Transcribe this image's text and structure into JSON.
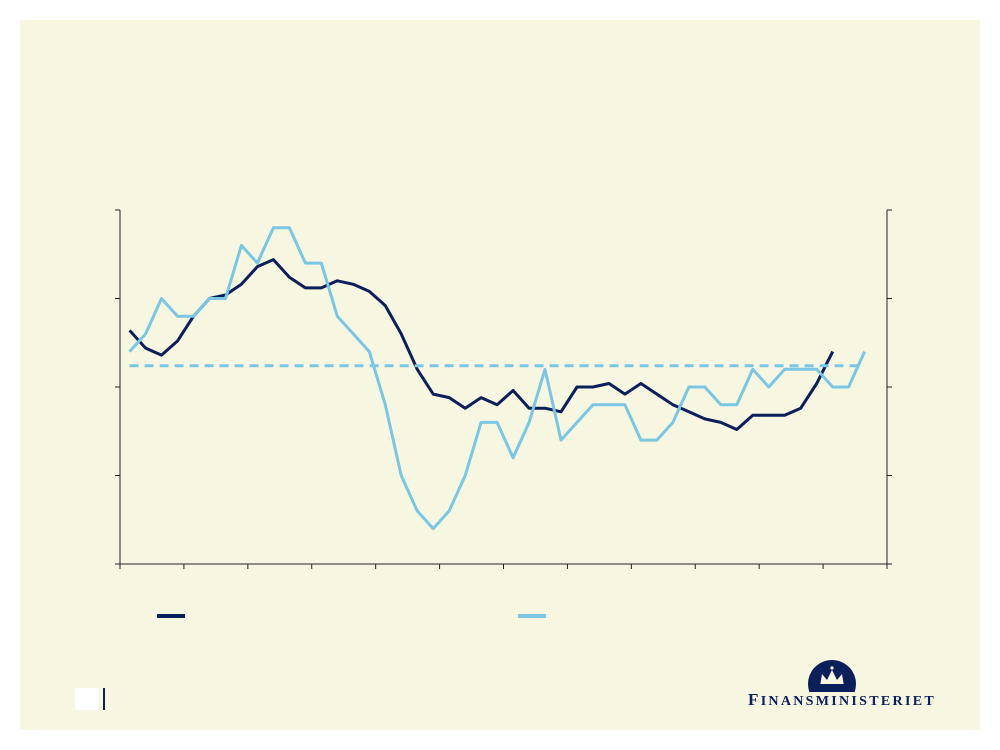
{
  "colors": {
    "background_panel": "#f7f6e1",
    "series_dark": "#0b1f5b",
    "series_light": "#7ac6e3",
    "axis": "#222222"
  },
  "chart_data": {
    "type": "line",
    "title": "",
    "xlabel": "",
    "ylabel": "",
    "grid": false,
    "legend": "bottom",
    "x_categories": 12,
    "y_left_ticks": 5,
    "y_right_ticks": 5,
    "ylim": [
      0,
      100
    ],
    "series": [
      {
        "axis": "left",
        "color": "#0b1f5b",
        "x": [
          0.15,
          0.4,
          0.65,
          0.9,
          1.15,
          1.4,
          1.65,
          1.9,
          2.15,
          2.4,
          2.65,
          2.9,
          3.15,
          3.4,
          3.65,
          3.9,
          4.15,
          4.4,
          4.65,
          4.9,
          5.15,
          5.4,
          5.65,
          5.9,
          6.15,
          6.4,
          6.65,
          6.9,
          7.15,
          7.4,
          7.65,
          7.9,
          8.15,
          8.4,
          8.65,
          8.9,
          9.15,
          9.4,
          9.65,
          9.9,
          10.15,
          10.4,
          10.65,
          10.9,
          11.15
        ],
        "y": [
          66,
          61,
          59,
          63,
          70,
          75,
          76,
          79,
          84,
          86,
          81,
          78,
          78,
          80,
          79,
          77,
          73,
          65,
          55,
          48,
          47,
          44,
          47,
          45,
          49,
          44,
          44,
          43,
          50,
          50,
          51,
          48,
          51,
          48,
          45,
          43,
          41,
          40,
          38,
          42,
          42,
          42,
          44,
          51,
          60
        ]
      },
      {
        "axis": "right",
        "color": "#7ac6e3",
        "x": [
          0.15,
          0.4,
          0.65,
          0.9,
          1.15,
          1.4,
          1.65,
          1.9,
          2.15,
          2.4,
          2.65,
          2.9,
          3.15,
          3.4,
          3.65,
          3.9,
          4.15,
          4.4,
          4.65,
          4.9,
          5.15,
          5.4,
          5.65,
          5.9,
          6.15,
          6.4,
          6.65,
          6.9,
          7.15,
          7.4,
          7.65,
          7.9,
          8.15,
          8.4,
          8.65,
          8.9,
          9.15,
          9.4,
          9.65,
          9.9,
          10.15,
          10.4,
          10.65,
          10.9,
          11.15,
          11.4,
          11.65
        ],
        "y": [
          60,
          65,
          75,
          70,
          70,
          75,
          75,
          90,
          85,
          95,
          95,
          85,
          85,
          70,
          65,
          60,
          45,
          25,
          15,
          10,
          15,
          25,
          40,
          40,
          30,
          40,
          55,
          35,
          40,
          45,
          45,
          45,
          35,
          35,
          40,
          50,
          50,
          45,
          45,
          55,
          50,
          55,
          55,
          55,
          50,
          50,
          60
        ]
      },
      {
        "axis": "right",
        "color": "#7ac6e3",
        "style": "dashed",
        "x": [
          0.15,
          11.65
        ],
        "y": [
          56,
          56
        ]
      }
    ]
  },
  "legend": {
    "items": [
      {
        "color": "#0b1f5b"
      },
      {
        "color": "#7ac6e3"
      }
    ]
  },
  "logo": {
    "first_letter": "F",
    "rest": "INANSMINISTERIET"
  }
}
